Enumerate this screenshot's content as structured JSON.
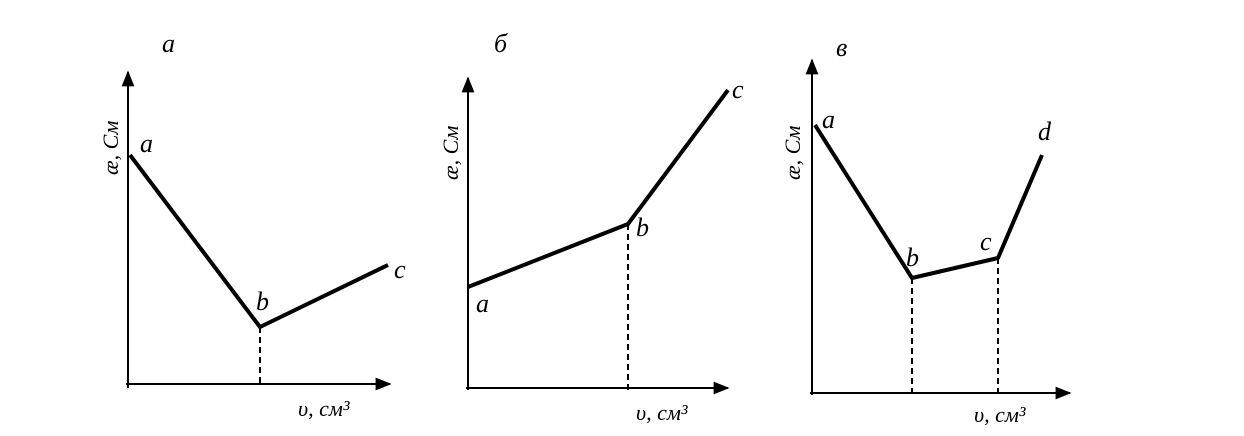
{
  "panels": [
    {
      "label": "а",
      "y_axis": "æ, См",
      "x_axis": "υ, см³",
      "points": [
        "a",
        "b",
        "c"
      ]
    },
    {
      "label": "б",
      "y_axis": "æ, См",
      "x_axis": "υ, см³",
      "points": [
        "a",
        "b",
        "c"
      ]
    },
    {
      "label": "в",
      "y_axis": "æ, См",
      "x_axis": "υ, см³",
      "points": [
        "a",
        "b",
        "c",
        "d"
      ]
    }
  ]
}
